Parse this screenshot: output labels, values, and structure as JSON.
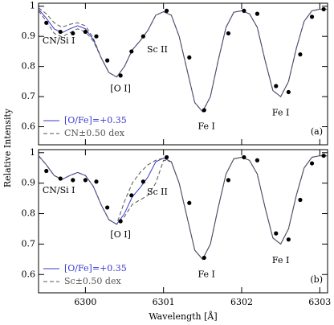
{
  "chart_data": [
    {
      "type": "line",
      "ylabel": "Relative Intensity",
      "xlim": [
        6299.4,
        6303.1
      ],
      "ylim": [
        0.54,
        1.01
      ],
      "xticks": [
        6300,
        6301,
        6302,
        6303
      ],
      "yticks": [
        0.6,
        0.7,
        0.8,
        0.9,
        1
      ],
      "x": [
        6299.4,
        6299.5,
        6299.6,
        6299.7,
        6299.8,
        6299.9,
        6300.0,
        6300.1,
        6300.2,
        6300.3,
        6300.4,
        6300.5,
        6300.6,
        6300.7,
        6300.8,
        6300.9,
        6301.0,
        6301.1,
        6301.2,
        6301.3,
        6301.4,
        6301.5,
        6301.6,
        6301.7,
        6301.8,
        6301.9,
        6302.0,
        6302.1,
        6302.2,
        6302.3,
        6302.4,
        6302.5,
        6302.6,
        6302.7,
        6302.8,
        6302.9,
        6303.0,
        6303.1
      ],
      "series": [
        {
          "name": "[O/Fe]=+0.35",
          "color": "#3a3ad0",
          "values": [
            0.99,
            0.96,
            0.925,
            0.912,
            0.925,
            0.935,
            0.925,
            0.89,
            0.83,
            0.78,
            0.765,
            0.8,
            0.855,
            0.885,
            0.92,
            0.97,
            0.982,
            0.97,
            0.9,
            0.79,
            0.68,
            0.65,
            0.7,
            0.82,
            0.93,
            0.98,
            0.985,
            0.975,
            0.93,
            0.82,
            0.72,
            0.7,
            0.75,
            0.86,
            0.95,
            0.985,
            0.99,
            0.99
          ]
        },
        {
          "name": "CN±0.50 dex",
          "color": "#555555",
          "dash": true,
          "values_plus": [
            0.995,
            0.975,
            0.945,
            0.93,
            0.94,
            0.945,
            0.935,
            0.895,
            0.83,
            0.78,
            0.765,
            0.8,
            0.855,
            0.885,
            0.92,
            0.97,
            0.982,
            0.97,
            0.9,
            0.79,
            0.68,
            0.65,
            0.7,
            0.82,
            0.93,
            0.98,
            0.985,
            0.975,
            0.93,
            0.82,
            0.72,
            0.7,
            0.75,
            0.86,
            0.95,
            0.985,
            0.99,
            0.99
          ],
          "values_minus": [
            0.985,
            0.95,
            0.91,
            0.898,
            0.912,
            0.925,
            0.915,
            0.885,
            0.83,
            0.78,
            0.765,
            0.8,
            0.855,
            0.885,
            0.92,
            0.97,
            0.982,
            0.97,
            0.9,
            0.79,
            0.68,
            0.65,
            0.7,
            0.82,
            0.93,
            0.98,
            0.985,
            0.975,
            0.93,
            0.82,
            0.72,
            0.7,
            0.75,
            0.86,
            0.95,
            0.985,
            0.99,
            0.99
          ]
        }
      ],
      "points": {
        "color": "#000000",
        "x": [
          6299.5,
          6299.68,
          6299.84,
          6300.0,
          6300.14,
          6300.28,
          6300.45,
          6300.59,
          6300.74,
          6301.04,
          6301.33,
          6301.52,
          6301.83,
          6302.03,
          6302.2,
          6302.44,
          6302.6,
          6302.75,
          6302.9,
          6303.05
        ],
        "values": [
          0.945,
          0.915,
          0.91,
          0.915,
          0.9,
          0.82,
          0.77,
          0.85,
          0.9,
          0.985,
          0.83,
          0.655,
          0.91,
          0.985,
          0.975,
          0.735,
          0.715,
          0.84,
          0.965,
          0.99
        ]
      },
      "annotations": [
        "CN/Si I",
        "[O I]",
        "Sc II",
        "Fe I",
        "Fe I"
      ],
      "panel_label": "(a)"
    },
    {
      "type": "line",
      "xlabel": "Wavelength [Å]",
      "xlim": [
        6299.4,
        6303.1
      ],
      "ylim": [
        0.54,
        1.01
      ],
      "xticks": [
        6300,
        6301,
        6302,
        6303
      ],
      "yticks": [
        0.6,
        0.7,
        0.8,
        0.9,
        1
      ],
      "x": [
        6299.4,
        6299.5,
        6299.6,
        6299.7,
        6299.8,
        6299.9,
        6300.0,
        6300.1,
        6300.2,
        6300.3,
        6300.4,
        6300.5,
        6300.6,
        6300.7,
        6300.8,
        6300.9,
        6301.0,
        6301.1,
        6301.2,
        6301.3,
        6301.4,
        6301.5,
        6301.6,
        6301.7,
        6301.8,
        6301.9,
        6302.0,
        6302.1,
        6302.2,
        6302.3,
        6302.4,
        6302.5,
        6302.6,
        6302.7,
        6302.8,
        6302.9,
        6303.0,
        6303.1
      ],
      "series": [
        {
          "name": "[O/Fe]=+0.35",
          "color": "#3a3ad0",
          "values": [
            0.99,
            0.96,
            0.925,
            0.912,
            0.925,
            0.935,
            0.925,
            0.89,
            0.83,
            0.78,
            0.765,
            0.8,
            0.855,
            0.885,
            0.92,
            0.97,
            0.982,
            0.97,
            0.9,
            0.79,
            0.68,
            0.65,
            0.7,
            0.82,
            0.93,
            0.98,
            0.985,
            0.975,
            0.93,
            0.82,
            0.72,
            0.7,
            0.75,
            0.86,
            0.95,
            0.985,
            0.99,
            0.99
          ]
        },
        {
          "name": "Sc±0.50 dex",
          "color": "#555555",
          "dash": true,
          "values_plus": [
            0.99,
            0.96,
            0.925,
            0.912,
            0.925,
            0.935,
            0.925,
            0.89,
            0.83,
            0.78,
            0.765,
            0.84,
            0.9,
            0.935,
            0.96,
            0.975,
            0.982,
            0.97,
            0.9,
            0.79,
            0.68,
            0.65,
            0.7,
            0.82,
            0.93,
            0.98,
            0.985,
            0.975,
            0.93,
            0.82,
            0.72,
            0.7,
            0.75,
            0.86,
            0.95,
            0.985,
            0.99,
            0.99
          ],
          "values_minus": [
            0.99,
            0.96,
            0.925,
            0.912,
            0.925,
            0.935,
            0.925,
            0.89,
            0.83,
            0.78,
            0.765,
            0.79,
            0.83,
            0.845,
            0.86,
            0.9,
            0.975,
            0.97,
            0.9,
            0.79,
            0.68,
            0.65,
            0.7,
            0.82,
            0.93,
            0.98,
            0.985,
            0.975,
            0.93,
            0.82,
            0.72,
            0.7,
            0.75,
            0.86,
            0.95,
            0.985,
            0.99,
            0.99
          ]
        }
      ],
      "points": {
        "color": "#000000",
        "x": [
          6299.5,
          6299.68,
          6299.84,
          6300.0,
          6300.14,
          6300.28,
          6300.45,
          6300.59,
          6300.74,
          6301.04,
          6301.33,
          6301.52,
          6301.83,
          6302.03,
          6302.2,
          6302.44,
          6302.6,
          6302.75,
          6302.9,
          6303.05
        ],
        "values": [
          0.94,
          0.915,
          0.91,
          0.91,
          0.905,
          0.82,
          0.775,
          0.86,
          0.905,
          0.985,
          0.835,
          0.655,
          0.91,
          0.985,
          0.975,
          0.735,
          0.715,
          0.845,
          0.965,
          0.99
        ]
      },
      "annotations": [
        "CN/Si I",
        "[O I]",
        "Sc II",
        "Fe I",
        "Fe I"
      ],
      "panel_label": "(b)"
    }
  ]
}
